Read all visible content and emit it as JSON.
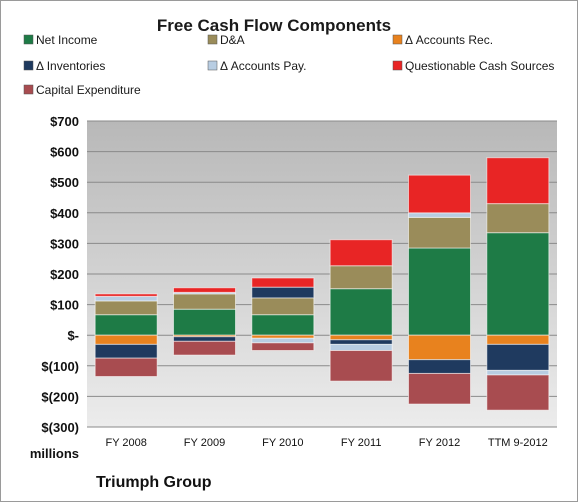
{
  "chart_data": {
    "type": "bar",
    "stacked": true,
    "title": "Free Cash Flow Components",
    "categories": [
      "FY 2008",
      "FY 2009",
      "FY 2010",
      "FY 2011",
      "FY 2012",
      "TTM 9-2012"
    ],
    "series": [
      {
        "name": "Net Income",
        "color": "#1e7b46",
        "values": [
          67,
          85,
          67,
          152,
          285,
          335
        ]
      },
      {
        "name": "D&A",
        "color": "#9a8c5a",
        "values": [
          45,
          50,
          55,
          75,
          100,
          95
        ]
      },
      {
        "name": "Δ Accounts Rec.",
        "color": "#e8821e",
        "values": [
          -30,
          -5,
          -10,
          -15,
          -80,
          -30
        ]
      },
      {
        "name": "Δ Inventories",
        "color": "#1f3a5f",
        "values": [
          -45,
          -15,
          35,
          -15,
          -45,
          -85
        ]
      },
      {
        "name": "Δ Accounts Pay.",
        "color": "#b8cde2",
        "values": [
          15,
          5,
          -15,
          -20,
          15,
          -15
        ]
      },
      {
        "name": "Questionable Cash Sources",
        "color": "#e82525",
        "values": [
          8,
          15,
          30,
          85,
          123,
          150
        ]
      },
      {
        "name": "Capital Expenditure",
        "color": "#a84c50",
        "values": [
          -60,
          -45,
          -25,
          -100,
          -100,
          -115
        ]
      }
    ],
    "ylim": [
      -300,
      700
    ],
    "yticks": [
      700,
      600,
      500,
      400,
      300,
      200,
      100,
      0,
      -100,
      -200,
      -300
    ],
    "ytick_labels": [
      "$700",
      "$600",
      "$500",
      "$400",
      "$300",
      "$200",
      "$100",
      "$-",
      "$(100)",
      "$(200)",
      "$(300)"
    ],
    "ylabel": "millions",
    "grid": true,
    "legend_position": "top"
  },
  "footer": {
    "company": "Triumph Group"
  }
}
